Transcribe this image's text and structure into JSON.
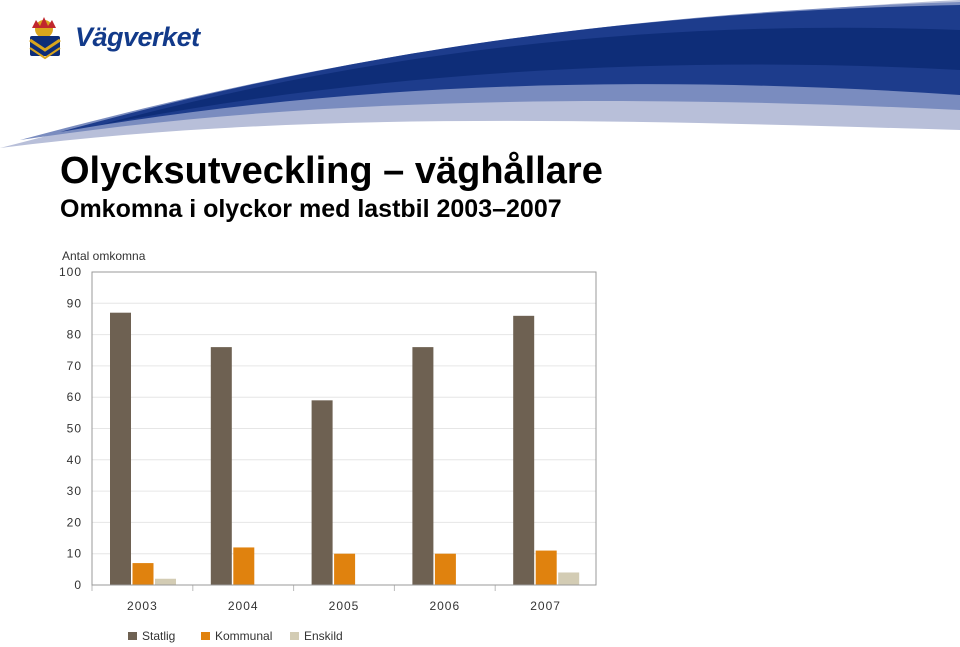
{
  "brand": "Vägverket",
  "title": "Olycksutveckling – väghållare",
  "subtitle": "Omkomna i olyckor med lastbil 2003–2007",
  "chart_data": {
    "type": "bar",
    "ylabel": "Antal omkomna",
    "ylim": [
      0,
      100
    ],
    "yticks": [
      0,
      10,
      20,
      30,
      40,
      50,
      60,
      70,
      80,
      90,
      100
    ],
    "categories": [
      "2003",
      "2004",
      "2005",
      "2006",
      "2007"
    ],
    "series": [
      {
        "name": "Statlig",
        "color": "#6e6152",
        "values": [
          87,
          76,
          59,
          76,
          86
        ]
      },
      {
        "name": "Kommunal",
        "color": "#e0820e",
        "values": [
          7,
          12,
          10,
          10,
          11
        ]
      },
      {
        "name": "Enskild",
        "color": "#d3ccb4",
        "values": [
          2,
          0,
          0,
          0,
          4
        ]
      }
    ],
    "grid": true,
    "legend": "bottom"
  }
}
